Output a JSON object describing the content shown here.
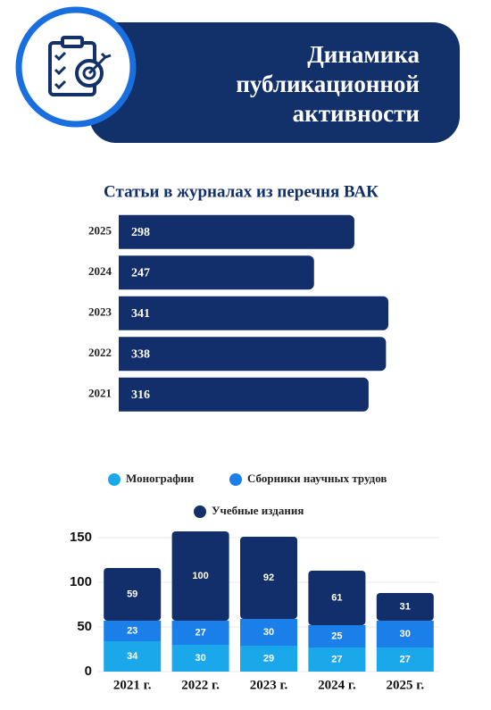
{
  "header": {
    "title": "Динамика публикационной активности"
  },
  "chart_data": [
    {
      "type": "barh",
      "title": "Статьи в журналах из перечня ВАК",
      "categories": [
        "2025",
        "2024",
        "2023",
        "2022",
        "2021"
      ],
      "values": [
        298,
        247,
        341,
        338,
        316
      ],
      "color": "#132f6b",
      "xlim": [
        0,
        350
      ]
    },
    {
      "type": "bar",
      "stacked": true,
      "categories": [
        "2021 г.",
        "2022 г.",
        "2023 г.",
        "2024 г.",
        "2025 г."
      ],
      "series": [
        {
          "name": "Монографии",
          "color": "#1ba8ea",
          "values": [
            34,
            30,
            29,
            27,
            27
          ]
        },
        {
          "name": "Сборники научных трудов",
          "color": "#1a7fe8",
          "values": [
            23,
            27,
            30,
            25,
            30
          ]
        },
        {
          "name": "Учебные издания",
          "color": "#132f6b",
          "values": [
            59,
            100,
            92,
            61,
            31
          ]
        }
      ],
      "ylim": [
        0,
        160
      ],
      "yticks": [
        0,
        50,
        100,
        150
      ],
      "grid": true
    }
  ]
}
